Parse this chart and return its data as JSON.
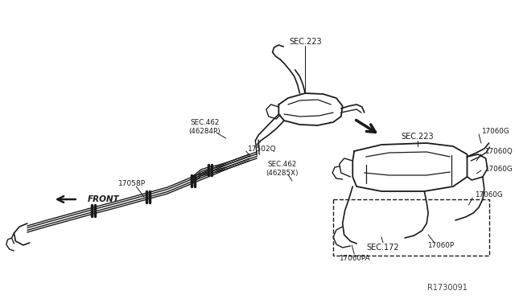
{
  "bg_color": "#ffffff",
  "line_color": "#1a1a1a",
  "text_color": "#1a1a1a",
  "watermark": "R1730091",
  "labels": {
    "SEC223_top": "SEC.223",
    "SEC462_left": "SEC.462\n(46284P)",
    "17502Q": "17502Q",
    "SEC462_right": "SEC.462\n(46285X)",
    "17058P": "17058P",
    "FRONT": "FRONT",
    "SEC223_right": "SEC.223",
    "17060G_top": "17060G",
    "17060Q": "17060Q",
    "17060G_mid": "17060G",
    "17060G_bot": "17060G",
    "SEC172": "SEC.172",
    "17060PA": "17060PA",
    "17060P": "17060P"
  }
}
